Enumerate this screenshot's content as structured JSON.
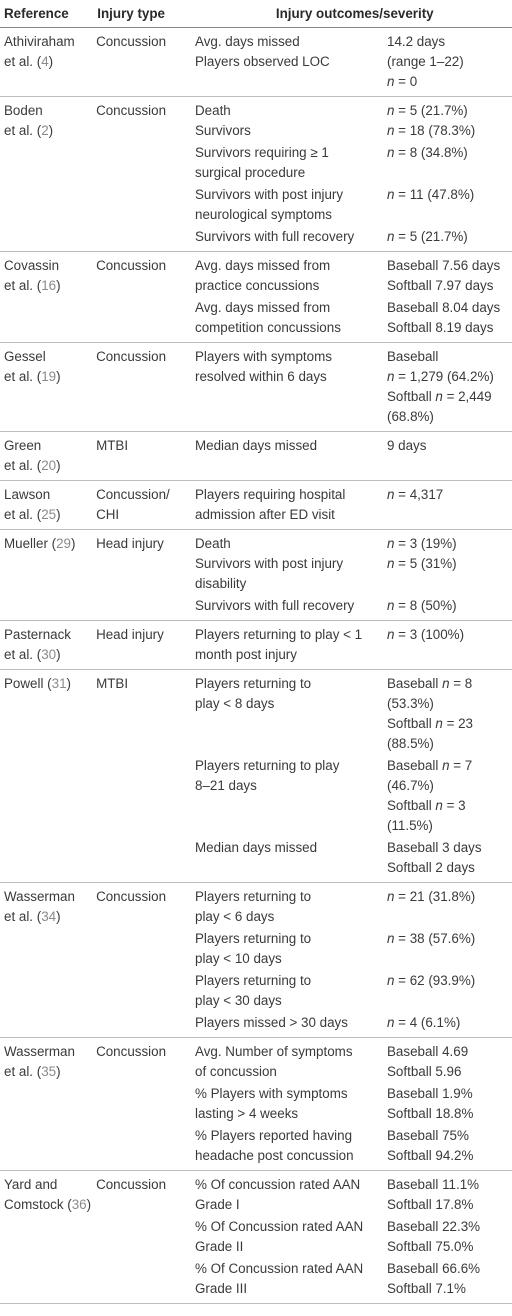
{
  "table": {
    "header": [
      "Reference",
      "Injury type",
      "Injury outcomes/severity"
    ],
    "rows": [
      {
        "reference": [
          "Athiviraham",
          "et al. (4)"
        ],
        "type": [
          "Concussion"
        ],
        "groups": [
          {
            "label": [
              "Avg. days missed",
              "Players observed LOC"
            ],
            "value": [
              "14.2 days",
              "(range 1–22)",
              "n = 0"
            ]
          }
        ]
      },
      {
        "reference": [
          "Boden",
          "et al. (2)"
        ],
        "type": [
          "Concussion"
        ],
        "groups": [
          {
            "label": [
              "Death",
              "Survivors"
            ],
            "value": [
              "n = 5 (21.7%)",
              "n = 18 (78.3%)"
            ]
          },
          {
            "label": [
              "Survivors requiring ≥ 1",
              "surgical procedure"
            ],
            "value": [
              "n = 8 (34.8%)"
            ]
          },
          {
            "label": [
              "Survivors with post injury",
              "neurological symptoms"
            ],
            "value": [
              "n = 11 (47.8%)"
            ]
          },
          {
            "label": [
              "Survivors with full recovery"
            ],
            "value": [
              "n = 5 (21.7%)"
            ]
          }
        ]
      },
      {
        "reference": [
          "Covassin",
          "et al. (16)"
        ],
        "type": [
          "Concussion"
        ],
        "groups": [
          {
            "label": [
              "Avg. days missed from",
              "practice concussions"
            ],
            "value": [
              "Baseball 7.56 days",
              "Softball 7.97 days"
            ]
          },
          {
            "label": [
              "Avg. days missed from",
              "competition concussions"
            ],
            "value": [
              "Baseball 8.04 days",
              "Softball 8.19 days"
            ]
          }
        ]
      },
      {
        "reference": [
          "Gessel",
          "et al. (19)"
        ],
        "type": [
          "Concussion"
        ],
        "groups": [
          {
            "label": [
              "Players with symptoms",
              "resolved within 6 days"
            ],
            "value": [
              "Baseball",
              "n = 1,279 (64.2%)",
              "Softball n = 2,449",
              "(68.8%)"
            ]
          }
        ]
      },
      {
        "reference": [
          "Green",
          "et al. (20)"
        ],
        "type": [
          "MTBI"
        ],
        "groups": [
          {
            "label": [
              "Median days missed"
            ],
            "value": [
              "9 days"
            ]
          }
        ]
      },
      {
        "reference": [
          "Lawson",
          "et al. (25)"
        ],
        "type": [
          "Concussion/",
          "CHI"
        ],
        "groups": [
          {
            "label": [
              "Players requiring hospital",
              "admission after ED visit"
            ],
            "value": [
              "n = 4,317"
            ]
          }
        ]
      },
      {
        "reference": [
          "Mueller (29)"
        ],
        "type": [
          "Head injury"
        ],
        "groups": [
          {
            "label": [
              "Death",
              "Survivors with post injury",
              "disability"
            ],
            "value": [
              "n = 3 (19%)",
              "n = 5 (31%)"
            ]
          },
          {
            "label": [
              "Survivors with full recovery"
            ],
            "value": [
              "n = 8 (50%)"
            ]
          }
        ]
      },
      {
        "reference": [
          "Pasternack",
          "et al. (30)"
        ],
        "type": [
          "Head injury"
        ],
        "groups": [
          {
            "label": [
              "Players returning to play < 1",
              "month post injury"
            ],
            "value": [
              "n = 3 (100%)"
            ]
          }
        ]
      },
      {
        "reference": [
          "Powell (31)"
        ],
        "type": [
          "MTBI"
        ],
        "groups": [
          {
            "label": [
              "Players returning to",
              "play < 8 days"
            ],
            "value": [
              "Baseball n = 8",
              "(53.3%)",
              "Softball n = 23",
              "(88.5%)"
            ]
          },
          {
            "label": [
              "Players returning to play",
              "8–21 days"
            ],
            "value": [
              "Baseball n = 7",
              "(46.7%)",
              "Softball n = 3",
              "(11.5%)"
            ]
          },
          {
            "label": [
              "Median days missed"
            ],
            "value": [
              "Baseball 3 days",
              "Softball 2 days"
            ]
          }
        ]
      },
      {
        "reference": [
          "Wasserman",
          "et al. (34)"
        ],
        "type": [
          "Concussion"
        ],
        "groups": [
          {
            "label": [
              "Players returning to",
              "play < 6 days"
            ],
            "value": [
              "n = 21 (31.8%)"
            ]
          },
          {
            "label": [
              "Players returning to",
              "play < 10 days"
            ],
            "value": [
              "n = 38 (57.6%)"
            ]
          },
          {
            "label": [
              "Players returning to",
              "play < 30 days"
            ],
            "value": [
              "n = 62 (93.9%)"
            ]
          },
          {
            "label": [
              "Players missed > 30 days"
            ],
            "value": [
              "n = 4 (6.1%)"
            ]
          }
        ]
      },
      {
        "reference": [
          "Wasserman",
          "et al. (35)"
        ],
        "type": [
          "Concussion"
        ],
        "groups": [
          {
            "label": [
              "Avg. Number of symptoms",
              "of concussion"
            ],
            "value": [
              "Baseball 4.69",
              "Softball 5.96"
            ]
          },
          {
            "label": [
              "% Players with symptoms",
              "lasting > 4 weeks"
            ],
            "value": [
              "Baseball 1.9%",
              "Softball 18.8%"
            ]
          },
          {
            "label": [
              "% Players reported having",
              "headache post concussion"
            ],
            "value": [
              "Baseball 75%",
              "Softball 94.2%"
            ]
          }
        ]
      },
      {
        "reference": [
          "Yard and",
          "Comstock (36)"
        ],
        "type": [
          "Concussion"
        ],
        "groups": [
          {
            "label": [
              "% Of concussion rated AAN",
              "Grade I"
            ],
            "value": [
              "Baseball 11.1%",
              "Softball 17.8%"
            ]
          },
          {
            "label": [
              "% Of Concussion rated AAN",
              "Grade II"
            ],
            "value": [
              "Baseball 22.3%",
              "Softball 75.0%"
            ]
          },
          {
            "label": [
              "% Of Concussion rated AAN",
              "Grade III"
            ],
            "value": [
              "Baseball 66.6%",
              "Softball 7.1%"
            ]
          }
        ]
      }
    ]
  }
}
